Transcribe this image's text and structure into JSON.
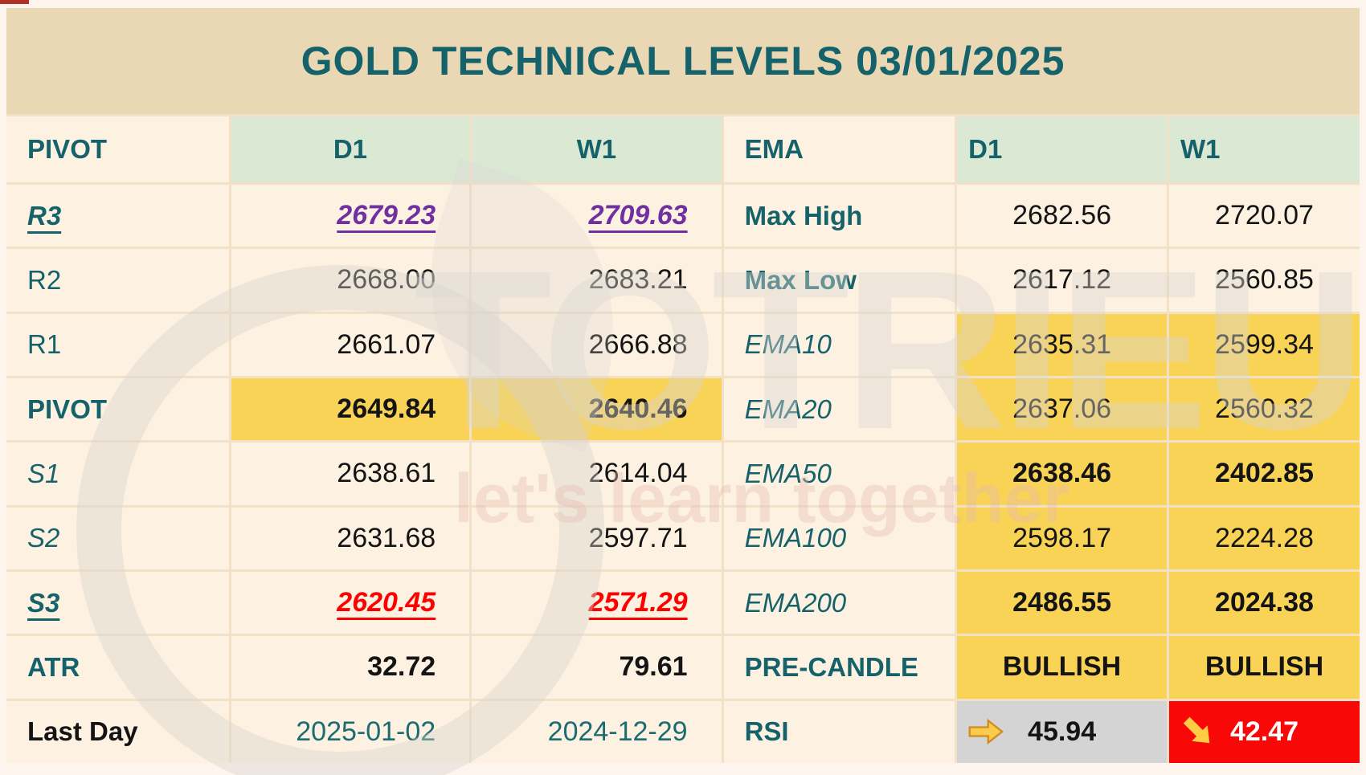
{
  "page": {
    "title": "GOLD TECHNICAL LEVELS 03/01/2025"
  },
  "watermark": {
    "brand": "TOTRIEU",
    "slogan": "let's learn together"
  },
  "colors": {
    "teal_text": "#15626B",
    "purple_breakout": "#7030A0",
    "red_breakdown": "#FE0000",
    "yellow_highlight": "#F8D355",
    "title_bg": "#E9D8B3",
    "header_green_bg": "#DBE9D4",
    "cell_cream_bg": "#FDF2E2",
    "rsi_d1_bg": "#D4D4D4",
    "rsi_w1_bg": "#F90808",
    "arrow_gold": "#FBCB4D"
  },
  "pivot_table": {
    "headers": [
      "PIVOT",
      "D1",
      "W1"
    ],
    "rows": [
      {
        "label": "R3",
        "d1": "2679.23",
        "w1": "2709.63"
      },
      {
        "label": "R2",
        "d1": "2668.00",
        "w1": "2683.21"
      },
      {
        "label": "R1",
        "d1": "2661.07",
        "w1": "2666.88"
      },
      {
        "label": "PIVOT",
        "d1": "2649.84",
        "w1": "2640.46"
      },
      {
        "label": "S1",
        "d1": "2638.61",
        "w1": "2614.04"
      },
      {
        "label": "S2",
        "d1": "2631.68",
        "w1": "2597.71"
      },
      {
        "label": "S3",
        "d1": "2620.45",
        "w1": "2571.29"
      },
      {
        "label": "ATR",
        "d1": "32.72",
        "w1": "79.61"
      },
      {
        "label": "Last Day",
        "d1": "2025-01-02",
        "w1": "2024-12-29"
      }
    ]
  },
  "ema_table": {
    "headers": [
      "EMA",
      "D1",
      "W1"
    ],
    "rows": [
      {
        "label": "Max High",
        "d1": "2682.56",
        "w1": "2720.07"
      },
      {
        "label": "Max Low",
        "d1": "2617.12",
        "w1": "2560.85"
      },
      {
        "label": "EMA10",
        "d1": "2635.31",
        "w1": "2599.34"
      },
      {
        "label": "EMA20",
        "d1": "2637.06",
        "w1": "2560.32"
      },
      {
        "label": "EMA50",
        "d1": "2638.46",
        "w1": "2402.85"
      },
      {
        "label": "EMA100",
        "d1": "2598.17",
        "w1": "2224.28"
      },
      {
        "label": "EMA200",
        "d1": "2486.55",
        "w1": "2024.38"
      },
      {
        "label": "PRE-CANDLE",
        "d1": "BULLISH",
        "w1": "BULLISH"
      },
      {
        "label": "RSI",
        "d1": "45.94",
        "w1": "42.47"
      }
    ]
  },
  "rsi_icons": {
    "d1": "right-arrow",
    "w1": "down-right-arrow"
  }
}
